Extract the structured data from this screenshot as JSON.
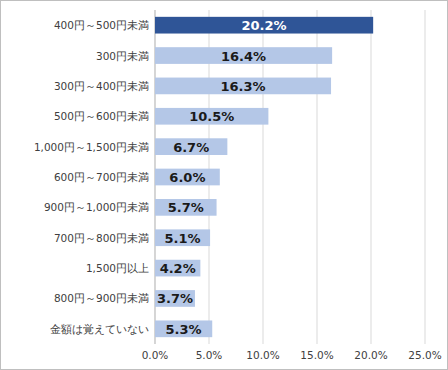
{
  "chart_data": {
    "type": "bar",
    "orientation": "horizontal",
    "categories": [
      "400円～500円未満",
      "300円未満",
      "300円～400円未満",
      "500円～600円未満",
      "1,000円～1,500円未満",
      "600円～700円未満",
      "900円～1,000円未満",
      "700円～800円未満",
      "1,500円以上",
      "800円～900円未満",
      "金額は覚えていない"
    ],
    "values": [
      20.2,
      16.4,
      16.3,
      10.5,
      6.7,
      6.0,
      5.7,
      5.1,
      4.2,
      3.7,
      5.3
    ],
    "value_labels": [
      "20.2%",
      "16.4%",
      "16.3%",
      "10.5%",
      "6.7%",
      "6.0%",
      "5.7%",
      "5.1%",
      "4.2%",
      "3.7%",
      "5.3%"
    ],
    "colors": [
      "#2f5597",
      "#b4c7e7",
      "#b4c7e7",
      "#b4c7e7",
      "#b4c7e7",
      "#b4c7e7",
      "#b4c7e7",
      "#b4c7e7",
      "#b4c7e7",
      "#b4c7e7",
      "#b4c7e7"
    ],
    "xlim": [
      0,
      25
    ],
    "xticks": [
      {
        "value": 0,
        "label": "0.0%"
      },
      {
        "value": 5,
        "label": "5.0%"
      },
      {
        "value": 10,
        "label": "10.0%"
      },
      {
        "value": 15,
        "label": "15.0%"
      },
      {
        "value": 20,
        "label": "20.0%"
      },
      {
        "value": 25,
        "label": "25.0%"
      }
    ],
    "grid": true,
    "data_labels": true
  }
}
